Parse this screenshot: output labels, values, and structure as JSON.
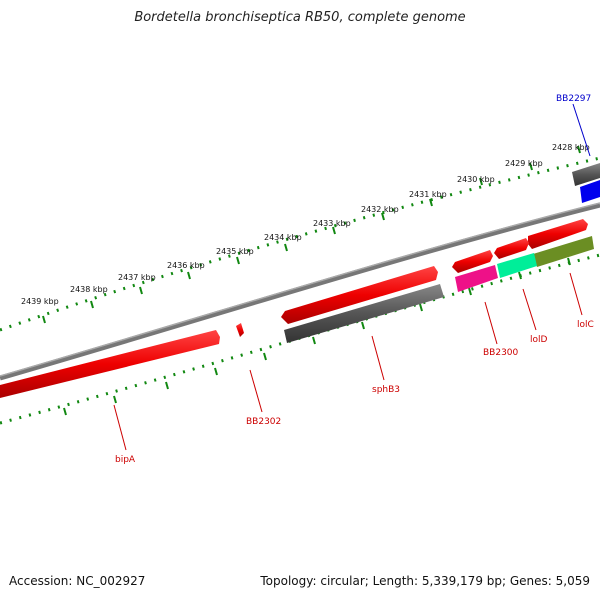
{
  "header": {
    "title": "Bordetella bronchiseptica RB50, complete genome"
  },
  "footer": {
    "accession": "Accession: NC_002927",
    "summary": "Topology: circular; Length: 5,339,179 bp; Genes: 5,059"
  },
  "ticks": {
    "labels": [
      "2428 kbp",
      "2429 kbp",
      "2430 kbp",
      "2431 kbp",
      "2432 kbp",
      "2433 kbp",
      "2434 kbp",
      "2435 kbp",
      "2436 kbp",
      "2437 kbp",
      "2438 kbp",
      "2439 kbp"
    ]
  },
  "genes": [
    {
      "label": "BB2297",
      "strand": "forward",
      "color": "#0000ee",
      "label_color": "#0000cc"
    },
    {
      "label": "lolC",
      "strand": "reverse",
      "color": "#6b8e23",
      "label_color": "#cc0000"
    },
    {
      "label": "lolD",
      "strand": "reverse",
      "color": "#00ee99",
      "label_color": "#cc0000"
    },
    {
      "label": "BB2300",
      "strand": "reverse",
      "color": "#ee1188",
      "label_color": "#cc0000"
    },
    {
      "label": "sphB3",
      "strand": "reverse",
      "color": "#666666",
      "label_color": "#cc0000"
    },
    {
      "label": "BB2302",
      "strand": "forward",
      "color": "#ee0000",
      "label_color": "#cc0000"
    },
    {
      "label": "bipA",
      "strand": "forward",
      "color": "#ee0000",
      "label_color": "#cc0000"
    }
  ],
  "colors": {
    "backbone": "#888888",
    "tick": "#118811",
    "feature_red": "#ee0000",
    "feature_dark": "#555555"
  }
}
